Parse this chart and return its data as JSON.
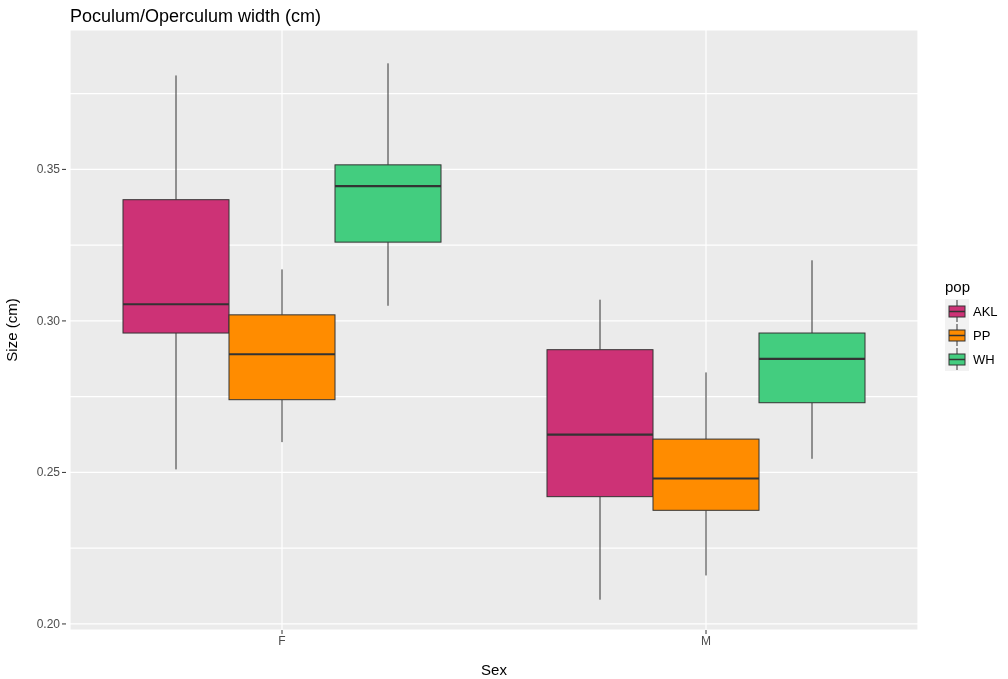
{
  "chart_data": {
    "type": "box",
    "title": "Poculum/Operculum width (cm)",
    "xlabel": "Sex",
    "ylabel": "Size (cm)",
    "legend_title": "pop",
    "legend": "right",
    "grid": true,
    "categories": [
      "F",
      "M"
    ],
    "ylim": [
      0.198,
      0.396
    ],
    "yticks": [
      {
        "value": 0.2,
        "label": "0.20"
      },
      {
        "value": 0.225,
        "label": null
      },
      0.25,
      {
        "value": 0.275,
        "label": null
      },
      {
        "value": 0.3,
        "label": "0.30"
      },
      {
        "value": 0.325,
        "label": null
      },
      0.35,
      {
        "value": 0.375,
        "label": null
      }
    ],
    "series": [
      {
        "name": "AKL",
        "color": "#cd3276",
        "boxes": [
          {
            "low": 0.251,
            "q1": 0.296,
            "median": 0.3055,
            "q3": 0.34,
            "high": 0.381
          },
          {
            "low": 0.208,
            "q1": 0.242,
            "median": 0.2625,
            "q3": 0.2905,
            "high": 0.307
          }
        ]
      },
      {
        "name": "PP",
        "color": "#ff8c00",
        "boxes": [
          {
            "low": 0.26,
            "q1": 0.274,
            "median": 0.289,
            "q3": 0.302,
            "high": 0.317
          },
          {
            "low": 0.216,
            "q1": 0.2375,
            "median": 0.248,
            "q3": 0.261,
            "high": 0.283
          }
        ]
      },
      {
        "name": "WH",
        "color": "#43cd7f",
        "boxes": [
          {
            "low": 0.305,
            "q1": 0.326,
            "median": 0.3445,
            "q3": 0.3515,
            "high": 0.385
          },
          {
            "low": 0.2545,
            "q1": 0.273,
            "median": 0.2875,
            "q3": 0.296,
            "high": 0.32
          }
        ]
      }
    ]
  }
}
